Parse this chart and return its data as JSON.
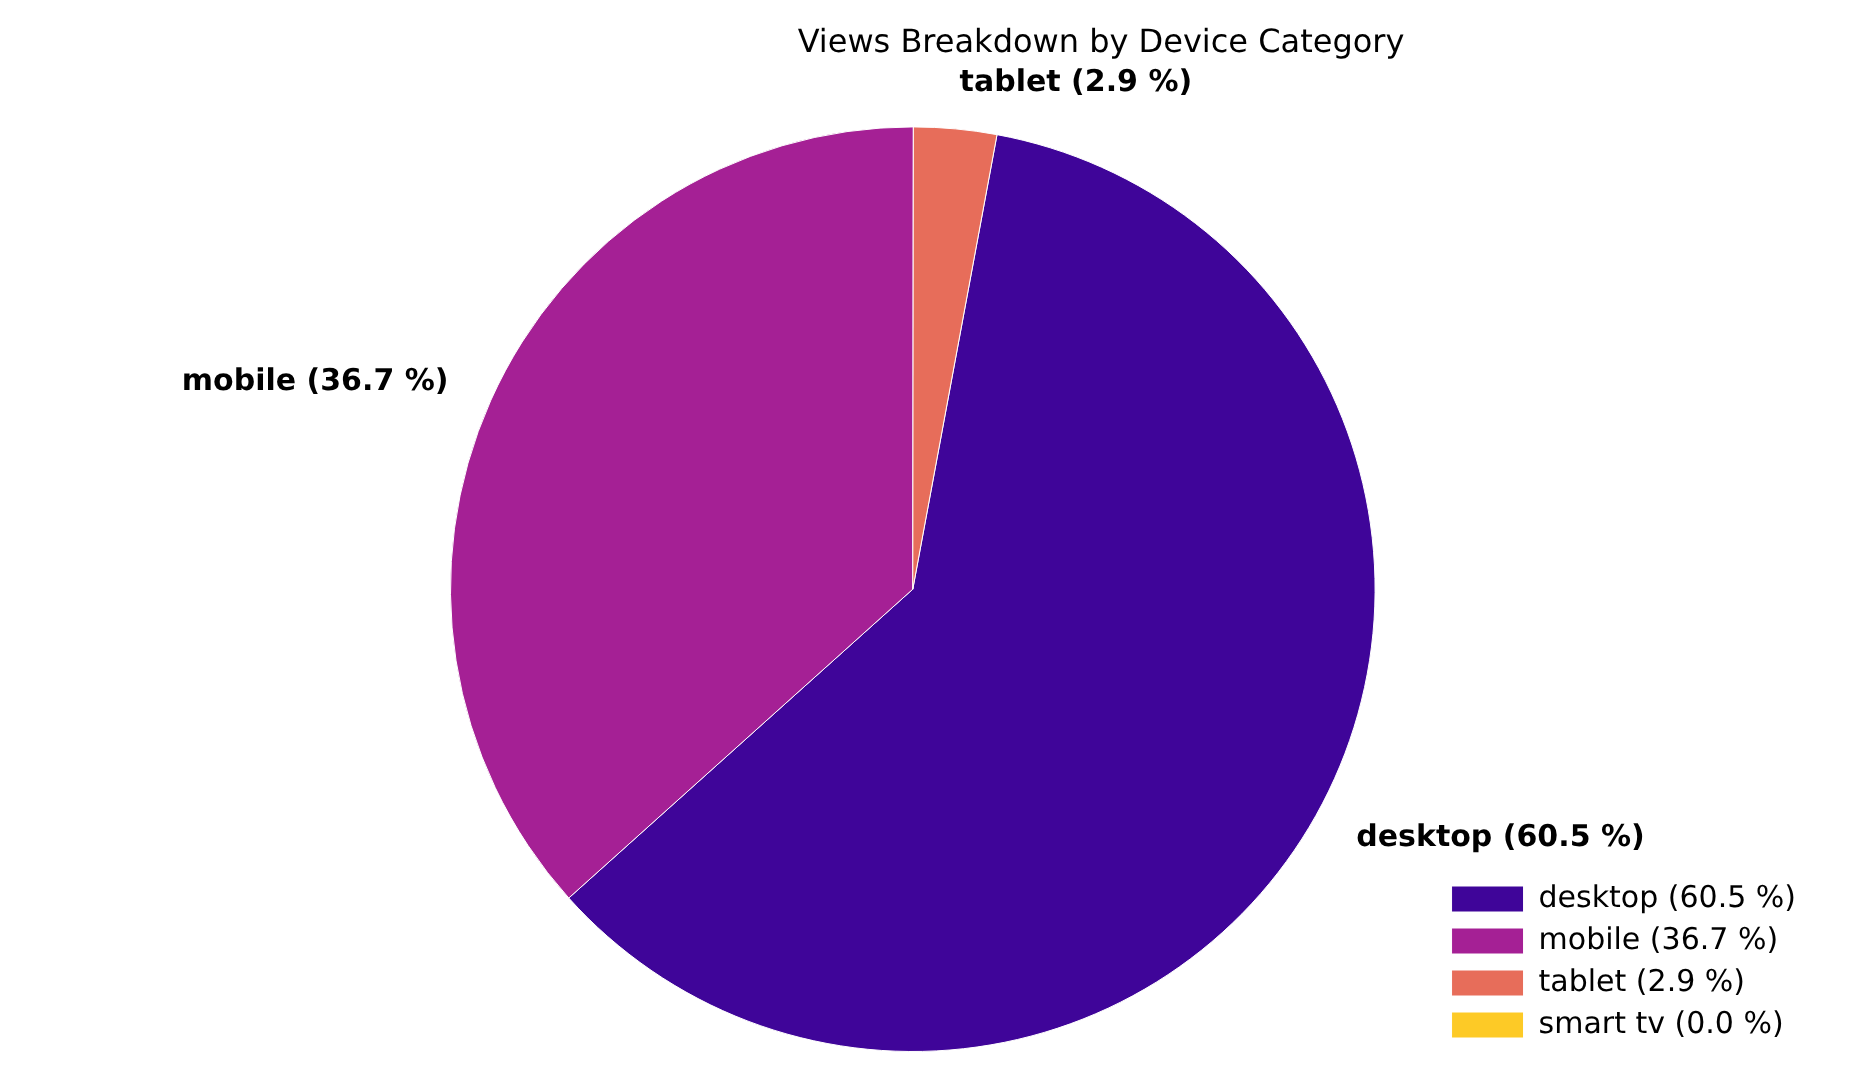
{
  "chart_data": {
    "type": "pie",
    "title": "Views Breakdown by Device Category",
    "categories": [
      "desktop (60.5 %)",
      "mobile (36.7 %)",
      "tablet (2.9 %)",
      "smart tv (0.0 %)"
    ],
    "values": [
      60.5,
      36.7,
      2.9,
      0.0
    ],
    "colors": [
      "#3f0599",
      "#a52095",
      "#e76d5a",
      "#fdca26"
    ],
    "legend": "bottom right"
  }
}
